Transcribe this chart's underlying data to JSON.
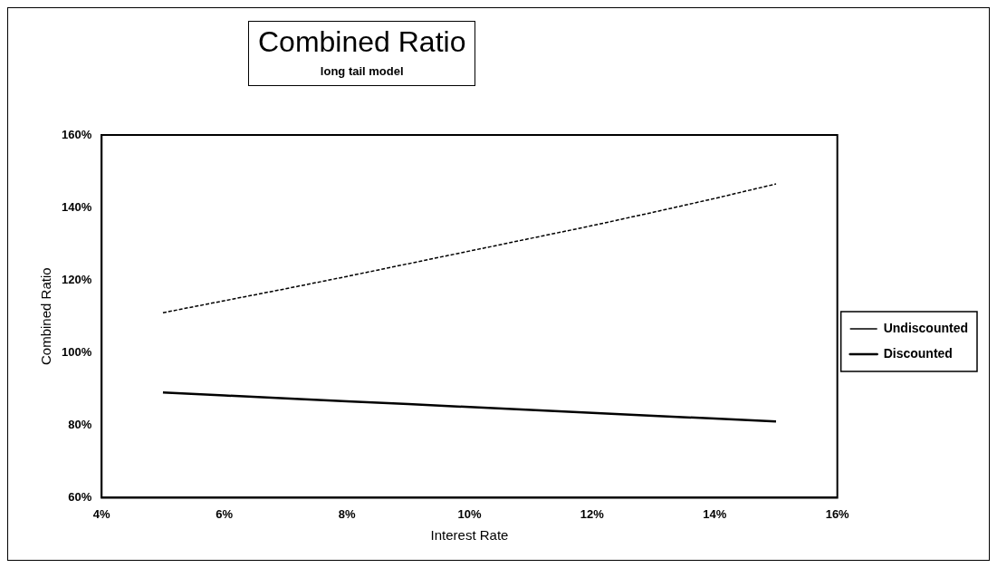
{
  "chart_data": {
    "type": "line",
    "title": "Combined Ratio",
    "subtitle": "long tail model",
    "xlabel": "Interest Rate",
    "ylabel": "Combined Ratio",
    "x": [
      5,
      6,
      7,
      8,
      9,
      10,
      11,
      12,
      13,
      14,
      15
    ],
    "series": [
      {
        "name": "Undiscounted",
        "color": "#000000",
        "line_style": "dashed",
        "values": [
          111,
          114.3,
          117.6,
          121,
          124.5,
          128,
          131.5,
          135,
          138.7,
          142.5,
          146.5
        ]
      },
      {
        "name": "Discounted",
        "color": "#000000",
        "line_style": "solid",
        "values": [
          89,
          88.2,
          87.4,
          86.6,
          85.8,
          85,
          84.2,
          83.4,
          82.6,
          81.8,
          81
        ]
      }
    ],
    "xlim": [
      4,
      16
    ],
    "xticks": [
      {
        "value": 4,
        "label": "4%"
      },
      {
        "value": 6,
        "label": "6%"
      },
      {
        "value": 8,
        "label": "8%"
      },
      {
        "value": 10,
        "label": "10%"
      },
      {
        "value": 12,
        "label": "12%"
      },
      {
        "value": 14,
        "label": "14%"
      },
      {
        "value": 16,
        "label": "16%"
      }
    ],
    "ylim": [
      60,
      160
    ],
    "yticks": [
      {
        "value": 60,
        "label": "60%"
      },
      {
        "value": 80,
        "label": "80%"
      },
      {
        "value": 100,
        "label": "100%"
      },
      {
        "value": 120,
        "label": "120%"
      },
      {
        "value": 140,
        "label": "140%"
      },
      {
        "value": 160,
        "label": "160%"
      }
    ],
    "grid": false,
    "legend": "right",
    "marker": "none"
  }
}
